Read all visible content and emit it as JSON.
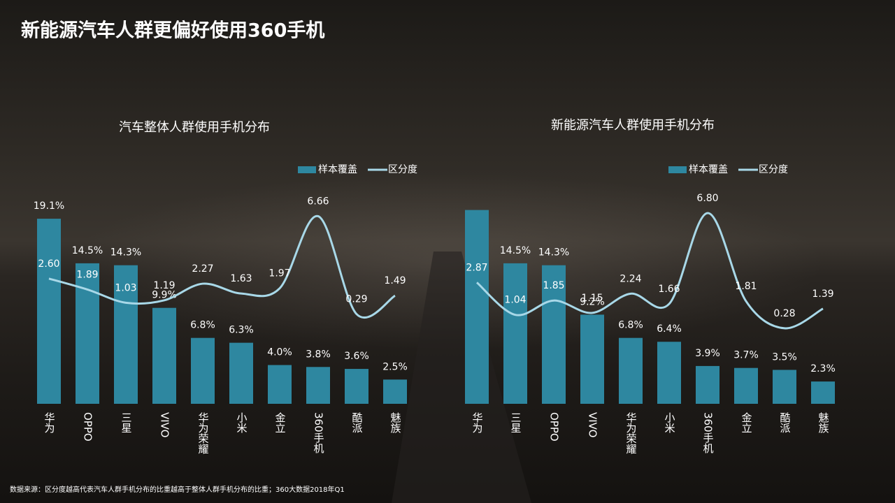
{
  "header": {
    "title": "新能源汽车人群更偏好使用360手机"
  },
  "footnote": "数据来源：区分度越高代表汽车人群手机分布的比重越高于整体人群手机分布的比重；360大数据2018年Q1",
  "chart_data": [
    {
      "type": "bar",
      "title": "汽车整体人群使用手机分布",
      "categories": [
        "华为",
        "OPPO",
        "三星",
        "VIVO",
        "华为荣耀",
        "小米",
        "金立",
        "360手机",
        "酷派",
        "魅族"
      ],
      "series": [
        {
          "name": "样本覆盖",
          "color": "#2e87a0",
          "values": [
            19.1,
            14.5,
            14.3,
            9.9,
            6.8,
            6.3,
            4.0,
            3.8,
            3.6,
            2.5
          ],
          "value_labels": [
            "19.1%",
            "14.5%",
            "14.3%",
            "9.9%",
            "6.8%",
            "6.3%",
            "4.0%",
            "3.8%",
            "3.6%",
            "2.5%"
          ]
        },
        {
          "name": "区分度",
          "type": "line",
          "axis": "y2",
          "color": "#a8d8e8",
          "values": [
            2.6,
            1.89,
            1.03,
            1.19,
            2.27,
            1.63,
            1.97,
            6.66,
            0.29,
            1.49
          ],
          "value_labels": [
            "2.60",
            "1.89",
            "1.03",
            "1.19",
            "2.27",
            "1.63",
            "1.97",
            "6.66",
            "0.29",
            "1.49"
          ]
        }
      ]
    },
    {
      "type": "bar",
      "title": "新能源汽车人群使用手机分布",
      "categories": [
        "华为",
        "三星",
        "OPPO",
        "VIVO",
        "华为荣耀",
        "小米",
        "360手机",
        "金立",
        "酷派",
        "魅族"
      ],
      "series": [
        {
          "name": "样本覆盖",
          "color": "#2e87a0",
          "values": [
            20.0,
            14.5,
            14.3,
            9.2,
            6.8,
            6.4,
            3.9,
            3.7,
            3.5,
            2.3
          ],
          "value_labels": [
            null,
            "14.5%",
            "14.3%",
            "9.2%",
            "6.8%",
            "6.4%",
            "3.9%",
            "3.7%",
            "3.5%",
            "2.3%"
          ]
        },
        {
          "name": "区分度",
          "type": "line",
          "axis": "y2",
          "color": "#a8d8e8",
          "values": [
            2.87,
            1.04,
            1.85,
            1.15,
            2.24,
            1.66,
            6.8,
            1.81,
            0.28,
            1.39
          ],
          "value_labels": [
            "2.87",
            "1.04",
            "1.85",
            "1.15",
            "2.24",
            "1.66",
            "6.80",
            "1.81",
            "0.28",
            "1.39"
          ]
        }
      ]
    }
  ]
}
